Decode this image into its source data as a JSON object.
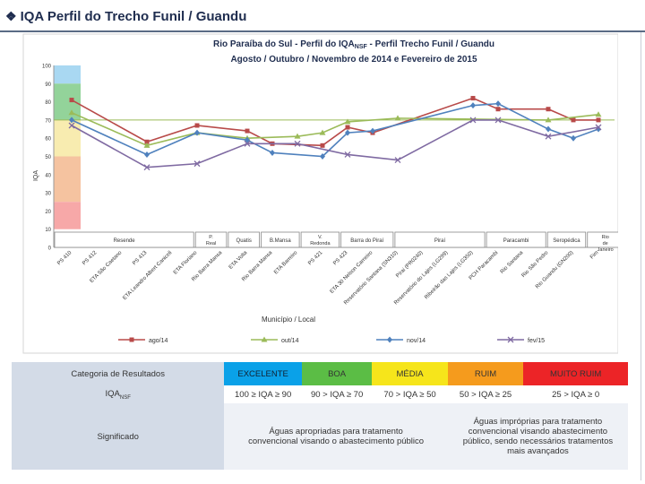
{
  "header": {
    "bullet": "❖",
    "title": "IQA Perfil do Trecho Funil / Guandu"
  },
  "chart_data": {
    "type": "line",
    "title_line1": "Rio Paraíba do Sul - Perfil do IQA",
    "title_sub": "NSF",
    "title_line1_end": " - Perfil Trecho Funil / Guandu",
    "title_line2": "Agosto / Outubro / Novembro de 2014 e Fevereiro de 2015",
    "ylabel": "IQA",
    "xlabel": "Município / Local",
    "ylim": [
      0,
      100
    ],
    "y_ticks": [
      "0",
      "10",
      "20",
      "30",
      "40",
      "50",
      "60",
      "70",
      "80",
      "90",
      "100"
    ],
    "reference_line": 70,
    "bands": [
      {
        "from": 90,
        "to": 100,
        "color": "#a9d8f2"
      },
      {
        "from": 70,
        "to": 90,
        "color": "#93d39a"
      },
      {
        "from": 50,
        "to": 70,
        "color": "#f8ecb0"
      },
      {
        "from": 25,
        "to": 50,
        "color": "#f5c3a0"
      },
      {
        "from": 10,
        "to": 25,
        "color": "#f7a8a8"
      }
    ],
    "categories": [
      "PS 410",
      "PS 412",
      "ETA São Caetano",
      "PS 413",
      "ETA Leandro Albert Caniceli",
      "ETA Floriano",
      "Rio Barra Mansa",
      "ETA Volta",
      "Rio Barra Mansa",
      "ETA Barreiro",
      "PS 421",
      "PS 423",
      "ETA 30 Nelson Carneiro",
      "Reservatório Santana (SN310)",
      "Pirai (PR0240)",
      "Reservatório do Lajes (LG299)",
      "Ribeirão das Lajes (LG350)",
      "PCH Paracambi",
      "Rio Santana",
      "Rio São Pedro",
      "Rio Guandu (GN200)",
      "Fim"
    ],
    "series": [
      {
        "name": "ago/14",
        "color": "#b84a49",
        "marker": "square",
        "values": [
          81,
          null,
          null,
          58,
          null,
          67,
          null,
          64,
          57,
          null,
          56,
          66,
          63,
          null,
          null,
          null,
          82,
          76,
          null,
          76,
          70,
          70
        ]
      },
      {
        "name": "out/14",
        "color": "#9bbb59",
        "marker": "triangle",
        "values": [
          74,
          null,
          null,
          56,
          null,
          63,
          null,
          60,
          null,
          61,
          63,
          69,
          null,
          71,
          null,
          null,
          null,
          null,
          null,
          70,
          null,
          73
        ]
      },
      {
        "name": "nov/14",
        "color": "#4f81bd",
        "marker": "diamond",
        "values": [
          70,
          null,
          null,
          51,
          null,
          63,
          null,
          59,
          52,
          null,
          50,
          63,
          64,
          null,
          null,
          null,
          78,
          79,
          null,
          65,
          60,
          65
        ]
      },
      {
        "name": "fev/15",
        "color": "#7f6aa2",
        "marker": "x",
        "values": [
          67,
          null,
          null,
          44,
          null,
          46,
          null,
          57,
          null,
          57,
          null,
          51,
          null,
          48,
          null,
          null,
          70,
          70,
          null,
          61,
          null,
          66
        ]
      }
    ],
    "regions": [
      {
        "label": "Resende",
        "from": 0,
        "to": 6
      },
      {
        "label": "P. Real",
        "from": 6,
        "to": 7.4
      },
      {
        "label": "Quatis",
        "from": 7.4,
        "to": 8.8
      },
      {
        "label": "B.Mansa",
        "from": 8.8,
        "to": 10.5
      },
      {
        "label": "V. Redonda",
        "from": 10.5,
        "to": 12.2
      },
      {
        "label": "Barra do Piraí",
        "from": 12.2,
        "to": 14.5
      },
      {
        "label": "Piraí",
        "from": 14.5,
        "to": 18.4
      },
      {
        "label": "Paracambi",
        "from": 18.4,
        "to": 21
      },
      {
        "label": "Seropédica",
        "from": 21,
        "to": 22.7
      },
      {
        "label": "Rio de Janeiro",
        "from": 22.7,
        "to": 24.3
      }
    ]
  },
  "category_table": {
    "header_label": "Categoria de Resultados",
    "index_label": "IQA",
    "index_sub": "NSF",
    "meaning_label": "Significado",
    "categories": [
      {
        "name": "EXCELENTE",
        "color": "#0aa1e8",
        "range": "100 ≥ IQA ≥ 90"
      },
      {
        "name": "BOA",
        "color": "#5bbd45",
        "range": "90 > IQA ≥ 70"
      },
      {
        "name": "MÉDIA",
        "color": "#f6e51b",
        "range": "70 > IQA ≥ 50"
      },
      {
        "name": "RUIM",
        "color": "#f59b1d",
        "range": "50 > IQA ≥ 25"
      },
      {
        "name": "MUITO RUIM",
        "color": "#ec2427",
        "range": "25 > IQA ≥ 0"
      }
    ],
    "meaning_good": "Águas apropriadas para tratamento convencional visando o abastecimento público",
    "meaning_bad": "Águas impróprias para tratamento convencional visando abastecimento público, sendo necessários tratamentos mais avançados"
  }
}
